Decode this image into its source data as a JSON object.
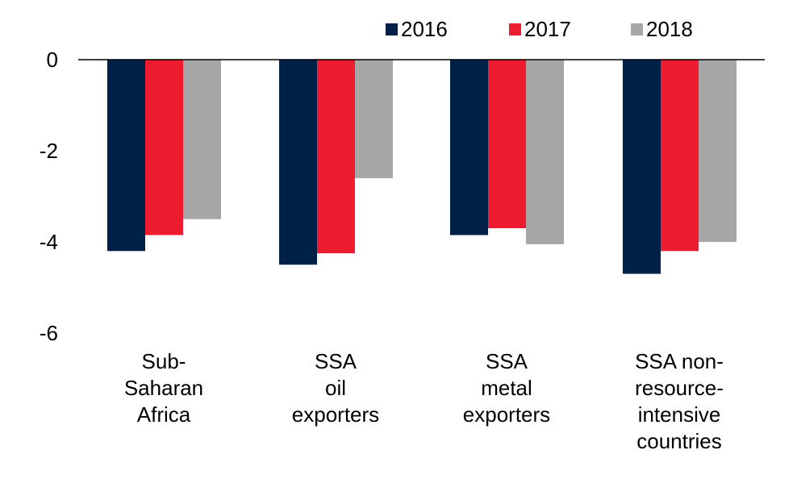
{
  "chart_data": {
    "type": "bar",
    "title": "",
    "xlabel": "",
    "ylabel": "",
    "ylim": [
      -6,
      0
    ],
    "yticks": [
      0,
      -2,
      -4,
      -6
    ],
    "grid": false,
    "legend_position": "top-right",
    "categories": [
      [
        "Sub-",
        "Saharan",
        "Africa"
      ],
      [
        "SSA",
        "oil",
        "exporters"
      ],
      [
        "SSA",
        "metal",
        "exporters"
      ],
      [
        "SSA non-",
        "resource-",
        "intensive",
        "countries"
      ]
    ],
    "series": [
      {
        "name": "2016",
        "color": "#002147",
        "values": [
          -4.2,
          -4.5,
          -3.85,
          -4.7
        ]
      },
      {
        "name": "2017",
        "color": "#ED1C2E",
        "values": [
          -3.85,
          -4.25,
          -3.7,
          -4.2
        ]
      },
      {
        "name": "2018",
        "color": "#A6A6A6",
        "values": [
          -3.5,
          -2.6,
          -4.05,
          -4.0
        ]
      }
    ]
  }
}
